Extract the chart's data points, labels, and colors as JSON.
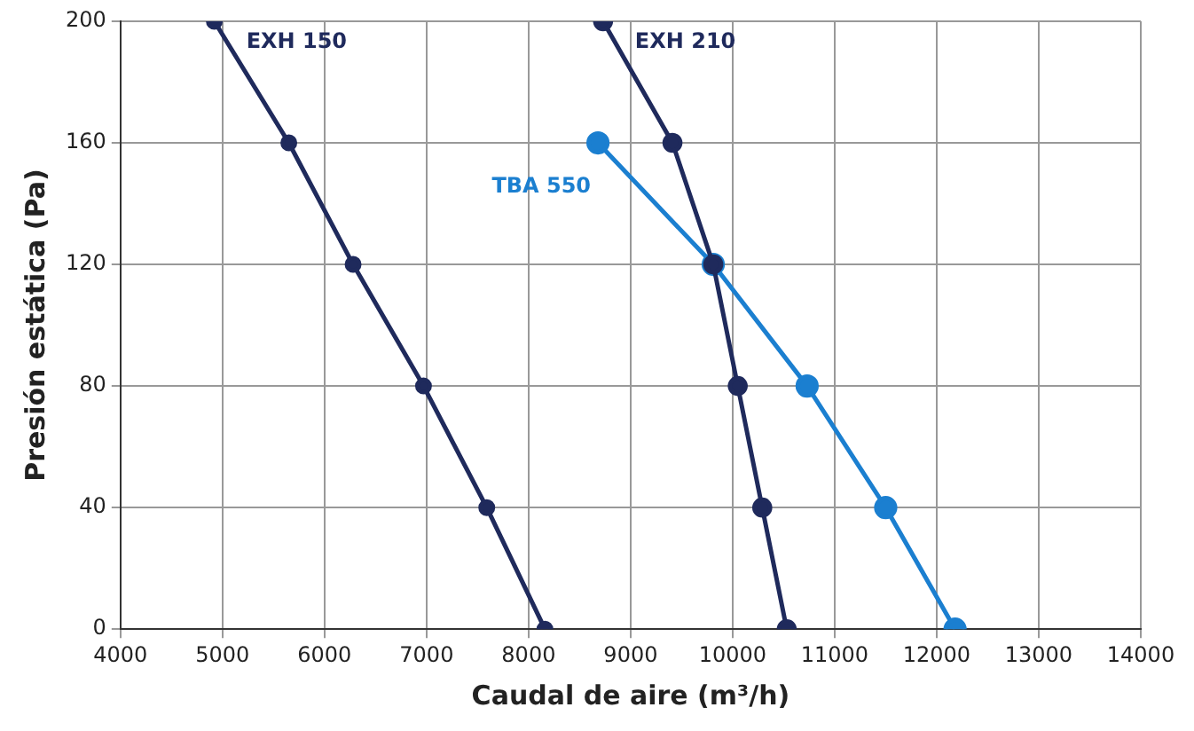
{
  "chart_data": {
    "type": "line",
    "xlabel": "Caudal de aire (m³/h)",
    "ylabel": "Presión estática (Pa)",
    "xlim": [
      4000,
      14000
    ],
    "xticks": [
      4000,
      5000,
      6000,
      7000,
      8000,
      9000,
      10000,
      11000,
      12000,
      13000,
      14000
    ],
    "ylim": [
      0,
      200
    ],
    "yticks": [
      0,
      40,
      80,
      120,
      160,
      200
    ],
    "grid": true,
    "legend": false,
    "marker": "circle",
    "line_style": "solid",
    "series": [
      {
        "name": "EXH 150",
        "color": "#1f2a5c",
        "x": [
          4920,
          5650,
          6280,
          6970,
          7590,
          8160
        ],
        "values": [
          200,
          160,
          120,
          80,
          40,
          0
        ]
      },
      {
        "name": "EXH 210",
        "color": "#1f2a5c",
        "x": [
          8730,
          9410,
          9810,
          10050,
          10290,
          10530
        ],
        "values": [
          200,
          160,
          120,
          80,
          40,
          0
        ]
      },
      {
        "name": "TBA 550",
        "color": "#1b7fd0",
        "x": [
          8680,
          9810,
          10730,
          11500,
          12180
        ],
        "values": [
          160,
          120,
          80,
          40,
          0
        ]
      }
    ]
  }
}
